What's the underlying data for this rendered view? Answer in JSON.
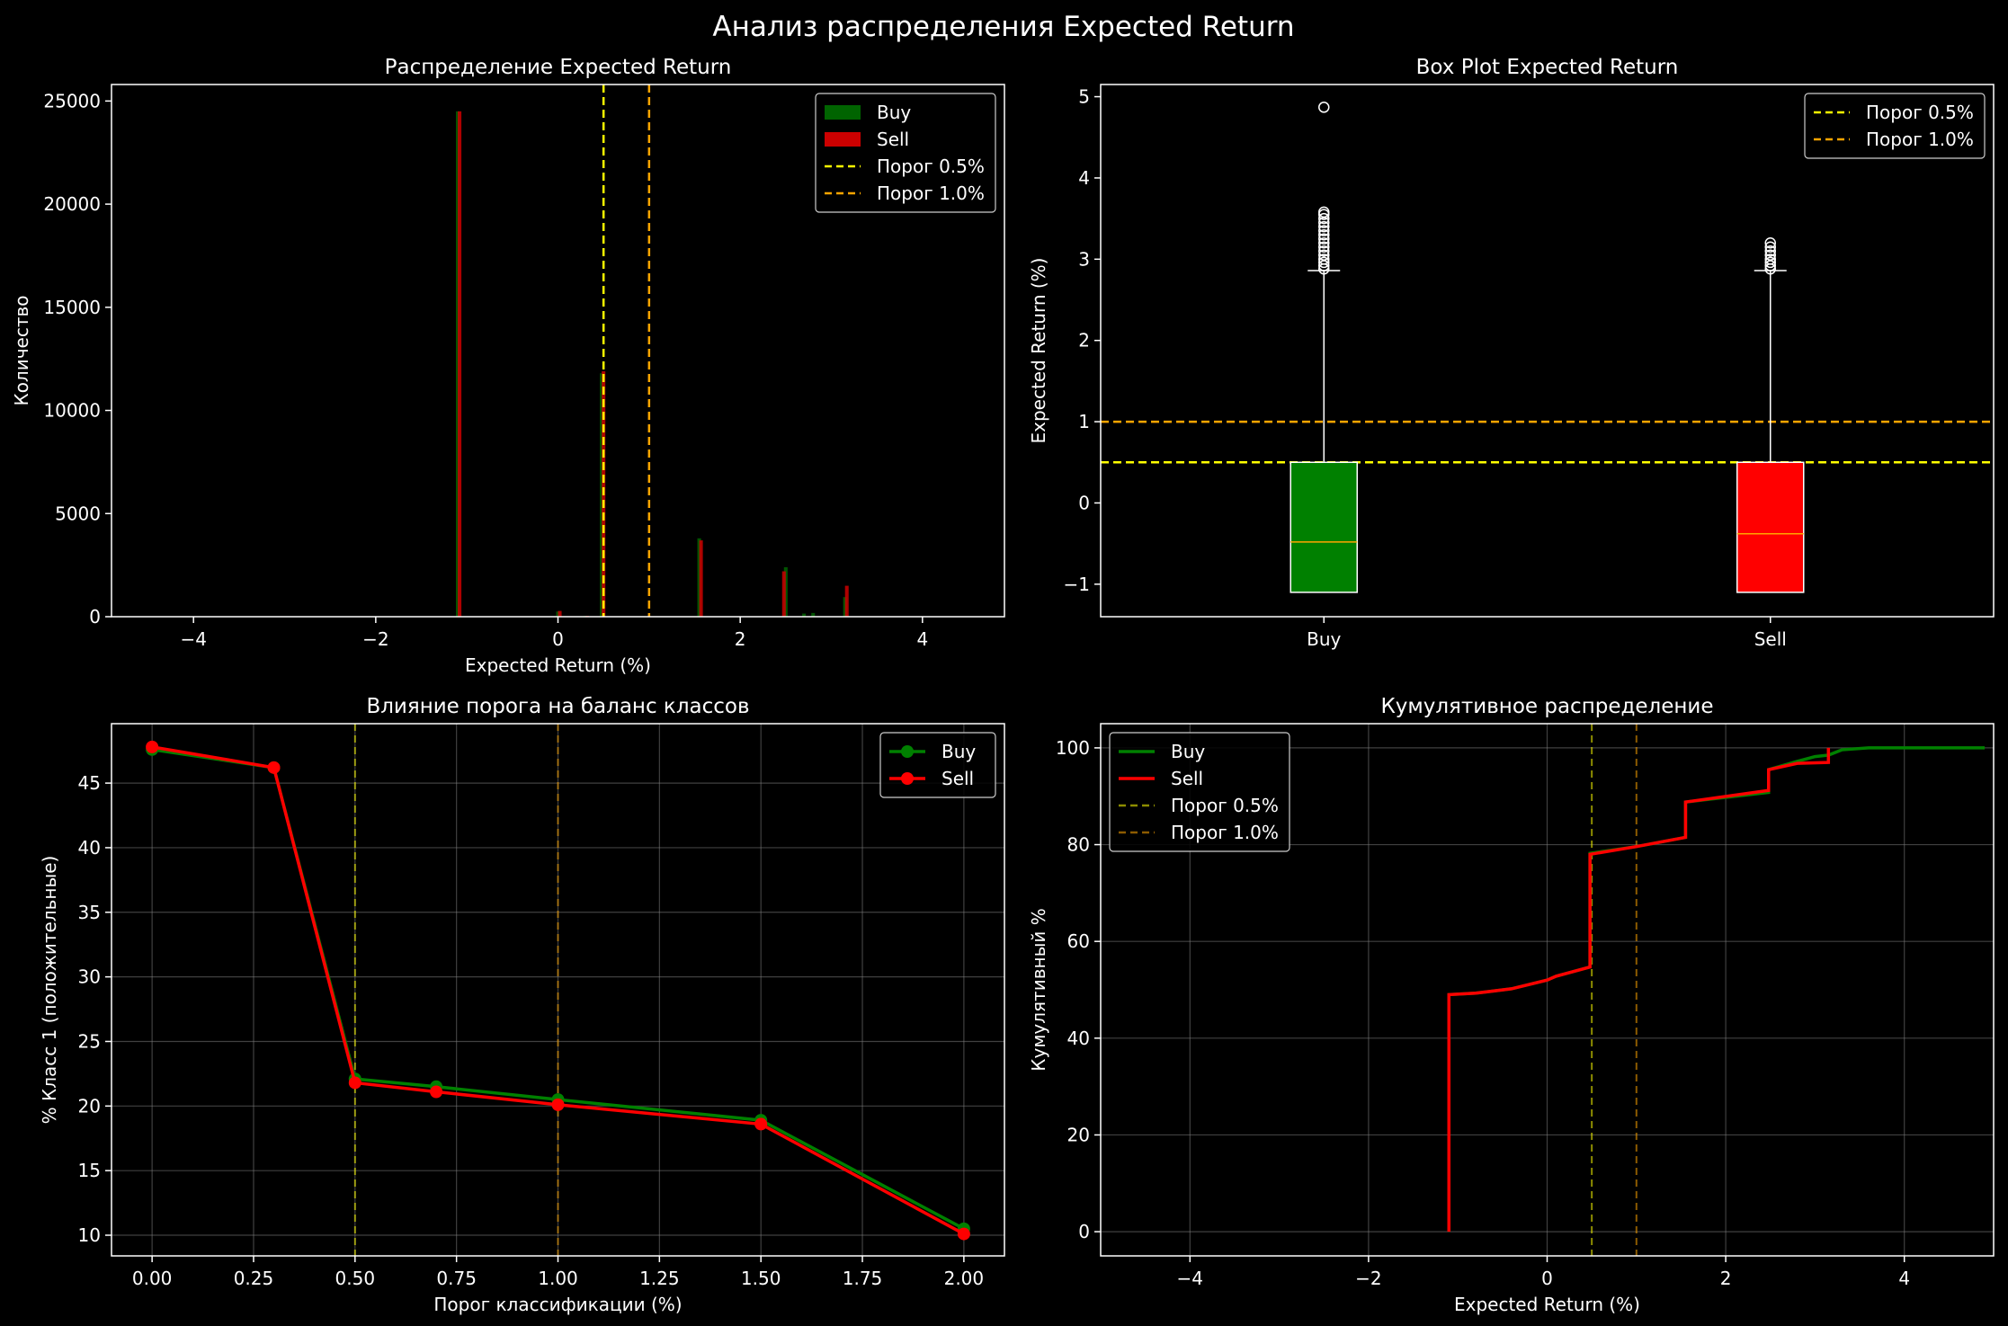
{
  "figure": {
    "suptitle": "Анализ распределения Expected Return",
    "colors": {
      "background": "#000000",
      "buy": "#008000",
      "buy_hist": "#006400",
      "sell": "#ff0000",
      "sell_hist": "#cc0000",
      "threshold_05": "#ffff00",
      "threshold_10": "#ffa500",
      "median": "#ffa500",
      "grid": "#808080",
      "text": "#ffffff"
    }
  },
  "chart_data": [
    {
      "id": "hist",
      "type": "bar",
      "title": "Распределение Expected Return",
      "xlabel": "Expected Return (%)",
      "ylabel": "Количество",
      "xlim": [
        -4.9,
        4.9
      ],
      "ylim": [
        0,
        25800
      ],
      "xticks": [
        -4,
        -2,
        0,
        2,
        4
      ],
      "yticks": [
        0,
        5000,
        10000,
        15000,
        20000,
        25000
      ],
      "grid": false,
      "legend": "top-right",
      "bin_width": 0.04,
      "series": [
        {
          "name": "Buy",
          "color_key": "buy_hist",
          "bins": [
            {
              "x": -1.1,
              "y": 24500
            },
            {
              "x": -0.3,
              "y": 20
            },
            {
              "x": 0.0,
              "y": 250
            },
            {
              "x": 0.3,
              "y": 40
            },
            {
              "x": 0.48,
              "y": 11800
            },
            {
              "x": 1.55,
              "y": 3800
            },
            {
              "x": 2.5,
              "y": 2400
            },
            {
              "x": 2.7,
              "y": 150
            },
            {
              "x": 2.8,
              "y": 180
            },
            {
              "x": 3.15,
              "y": 950
            }
          ]
        },
        {
          "name": "Sell",
          "color_key": "sell_hist",
          "bins": [
            {
              "x": -1.08,
              "y": 24500
            },
            {
              "x": -0.28,
              "y": 20
            },
            {
              "x": 0.02,
              "y": 280
            },
            {
              "x": 0.32,
              "y": 40
            },
            {
              "x": 0.5,
              "y": 11900
            },
            {
              "x": 1.57,
              "y": 3700
            },
            {
              "x": 2.48,
              "y": 2200
            },
            {
              "x": 3.17,
              "y": 1500
            }
          ]
        }
      ],
      "thresholds": [
        {
          "name": "Порог 0.5%",
          "value": 0.5,
          "color_key": "threshold_05"
        },
        {
          "name": "Порог 1.0%",
          "value": 1.0,
          "color_key": "threshold_10"
        }
      ]
    },
    {
      "id": "box",
      "type": "box",
      "title": "Box Plot Expected Return",
      "ylabel": "Expected Return (%)",
      "ylim": [
        -1.4,
        5.15
      ],
      "yticks": [
        -1,
        0,
        1,
        2,
        3,
        4,
        5
      ],
      "grid": false,
      "legend": "top-right",
      "categories": [
        "Buy",
        "Sell"
      ],
      "boxes": [
        {
          "category": "Buy",
          "q1": -1.1,
          "median": -0.48,
          "q3": 0.5,
          "whisker_low": -1.1,
          "whisker_high": 2.86,
          "outliers": [
            2.88,
            2.92,
            2.96,
            3.0,
            3.05,
            3.1,
            3.15,
            3.2,
            3.25,
            3.3,
            3.35,
            3.4,
            3.45,
            3.5,
            3.55,
            3.58,
            4.87
          ],
          "color_key": "buy"
        },
        {
          "category": "Sell",
          "q1": -1.1,
          "median": -0.38,
          "q3": 0.5,
          "whisker_low": -1.1,
          "whisker_high": 2.86,
          "outliers": [
            2.88,
            2.92,
            2.96,
            3.0,
            3.05,
            3.1,
            3.15,
            3.2
          ],
          "color_key": "sell"
        }
      ],
      "thresholds": [
        {
          "name": "Порог 0.5%",
          "value": 0.5,
          "color_key": "threshold_05"
        },
        {
          "name": "Порог 1.0%",
          "value": 1.0,
          "color_key": "threshold_10"
        }
      ]
    },
    {
      "id": "balance",
      "type": "line",
      "title": "Влияние порога на баланс классов",
      "xlabel": "Порог классификации (%)",
      "ylabel": "% Класс 1 (положительные)",
      "xlim": [
        -0.1,
        2.1
      ],
      "ylim": [
        8.4,
        49.6
      ],
      "xticks": [
        "0.00",
        "0.25",
        "0.50",
        "0.75",
        "1.00",
        "1.25",
        "1.50",
        "1.75",
        "2.00"
      ],
      "yticks": [
        10,
        15,
        20,
        25,
        30,
        35,
        40,
        45
      ],
      "grid": true,
      "legend": "top-right",
      "x": [
        0.0,
        0.3,
        0.5,
        0.7,
        1.0,
        1.5,
        2.0
      ],
      "series": [
        {
          "name": "Buy",
          "color_key": "buy",
          "values": [
            47.6,
            46.2,
            22.1,
            21.5,
            20.5,
            18.9,
            10.5
          ]
        },
        {
          "name": "Sell",
          "color_key": "sell",
          "values": [
            47.8,
            46.2,
            21.8,
            21.1,
            20.1,
            18.6,
            10.1
          ]
        }
      ],
      "thresholds": [
        {
          "value": 0.5,
          "color_key": "threshold_05"
        },
        {
          "value": 1.0,
          "color_key": "threshold_10"
        }
      ]
    },
    {
      "id": "cdf",
      "type": "line",
      "title": "Кумулятивное распределение",
      "xlabel": "Expected Return (%)",
      "ylabel": "Кумулятивный %",
      "xlim": [
        -5.0,
        5.0
      ],
      "ylim": [
        -5,
        105
      ],
      "xticks": [
        -4,
        -2,
        0,
        2,
        4
      ],
      "yticks": [
        0,
        20,
        40,
        60,
        80,
        100
      ],
      "grid": true,
      "legend": "top-left",
      "series": [
        {
          "name": "Buy",
          "color_key": "buy",
          "points": [
            [
              -1.1,
              0
            ],
            [
              -1.1,
              49
            ],
            [
              -0.8,
              49.3
            ],
            [
              -0.4,
              50.2
            ],
            [
              0.0,
              52.0
            ],
            [
              0.1,
              52.8
            ],
            [
              0.48,
              54.7
            ],
            [
              0.48,
              78.2
            ],
            [
              1.0,
              79.6
            ],
            [
              1.55,
              81.5
            ],
            [
              1.55,
              88.8
            ],
            [
              2.48,
              90.8
            ],
            [
              2.48,
              95.5
            ],
            [
              2.8,
              97.2
            ],
            [
              3.0,
              98.2
            ],
            [
              3.15,
              98.5
            ],
            [
              3.3,
              99.6
            ],
            [
              3.6,
              100
            ],
            [
              4.9,
              100
            ]
          ]
        },
        {
          "name": "Sell",
          "color_key": "sell",
          "points": [
            [
              -1.1,
              0
            ],
            [
              -1.1,
              49
            ],
            [
              -0.8,
              49.3
            ],
            [
              -0.4,
              50.2
            ],
            [
              0.0,
              52.0
            ],
            [
              0.1,
              52.8
            ],
            [
              0.48,
              54.7
            ],
            [
              0.48,
              78.0
            ],
            [
              1.0,
              79.6
            ],
            [
              1.55,
              81.5
            ],
            [
              1.55,
              88.8
            ],
            [
              2.48,
              91.2
            ],
            [
              2.48,
              95.5
            ],
            [
              2.8,
              96.8
            ],
            [
              3.15,
              97.0
            ],
            [
              3.15,
              100
            ]
          ]
        }
      ],
      "thresholds": [
        {
          "name": "Порог 0.5%",
          "value": 0.5,
          "color_key": "threshold_05"
        },
        {
          "name": "Порог 1.0%",
          "value": 1.0,
          "color_key": "threshold_10"
        }
      ]
    }
  ]
}
